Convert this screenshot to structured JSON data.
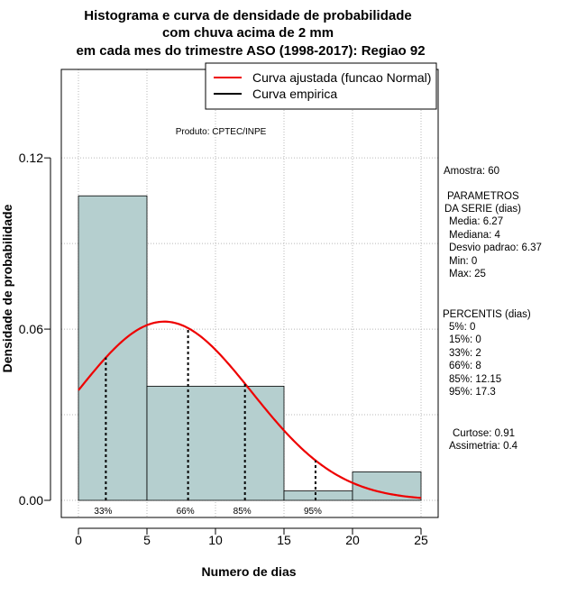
{
  "chart_data": {
    "type": "bar",
    "title_lines": [
      "Histograma e curva de densidade de probabilidade",
      "com chuva acima de 2 mm",
      "em cada mes do trimestre ASO (1998-2017): Regiao 92"
    ],
    "xlabel": "Numero de dias",
    "ylabel": "Densidade de probabilidade",
    "xlim": [
      -1.25,
      26.25
    ],
    "ylim": [
      -0.006,
      0.151
    ],
    "x_ticks": [
      0,
      5,
      10,
      15,
      20,
      25
    ],
    "x_tick_labels": [
      "0",
      "5",
      "10",
      "15",
      "20",
      "25"
    ],
    "y_ticks": [
      0.0,
      0.06,
      0.12
    ],
    "y_tick_labels": [
      "0.00",
      "0.06",
      "0.12"
    ],
    "bins": [
      {
        "start": 0,
        "end": 5,
        "density": 0.1067
      },
      {
        "start": 5,
        "end": 15,
        "density": 0.04
      },
      {
        "start": 15,
        "end": 20,
        "density": 0.0033
      },
      {
        "start": 20,
        "end": 25,
        "density": 0.01
      }
    ],
    "bar_color": "#b5cfcf",
    "grid": true,
    "grid_x": [
      0,
      5,
      10,
      15,
      20,
      25
    ],
    "grid_y": [
      0.0,
      0.03,
      0.06,
      0.09,
      0.12
    ],
    "normal_curve": {
      "mean": 6.27,
      "sd": 6.37,
      "from": 0,
      "to": 25,
      "color": "#ee0000"
    },
    "percentile_markers": [
      {
        "label": "33%",
        "x": 2
      },
      {
        "label": "66%",
        "x": 8
      },
      {
        "label": "85%",
        "x": 12.15
      },
      {
        "label": "95%",
        "x": 17.3
      }
    ],
    "legend": {
      "position": "top-right",
      "entries": [
        {
          "label": "Curva ajustada (funcao Normal)",
          "color": "#ee0000"
        },
        {
          "label": "Curva empirica",
          "color": "#000000"
        }
      ]
    },
    "annotation": "Produto: CPTEC/INPE",
    "side_text": [
      "Amostra: 60",
      "PARAMETROS",
      "DA SERIE (dias)",
      "Media: 6.27",
      "Mediana: 4",
      "Desvio padrao: 6.37",
      "Min: 0",
      "Max: 25",
      "PERCENTIS (dias)",
      "5%: 0",
      "15%: 0",
      "33%: 2",
      "66%: 8",
      "85%: 12.15",
      "95%: 17.3",
      "Curtose: 0.91",
      "Assimetria: 0.4"
    ]
  }
}
